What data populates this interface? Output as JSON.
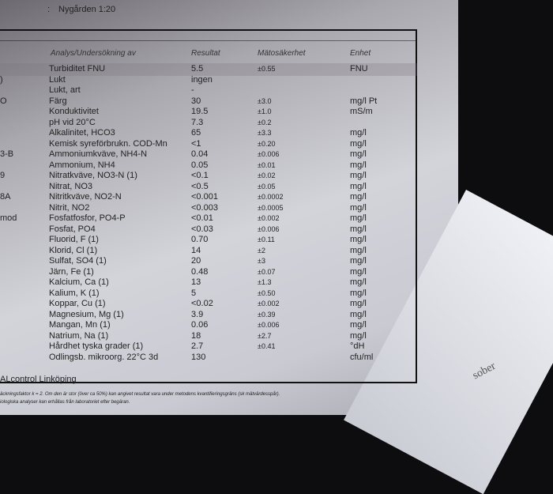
{
  "top": {
    "separator": ":",
    "text": "Nygården 1:20"
  },
  "headers": {
    "analysis": "Analys/Undersökning av",
    "result": "Resultat",
    "uncertainty": "Mätosäkerhet",
    "unit": "Enhet"
  },
  "rows": [
    {
      "code": "",
      "name": "Turbiditet FNU",
      "result": "5.5",
      "unc": "±0.55",
      "unit": "FNU"
    },
    {
      "code": ")",
      "name": "Lukt",
      "result": "ingen",
      "unc": "",
      "unit": ""
    },
    {
      "code": "",
      "name": "Lukt, art",
      "result": "-",
      "unc": "",
      "unit": ""
    },
    {
      "code": "O",
      "name": "Färg",
      "result": "30",
      "unc": "±3.0",
      "unit": "mg/l Pt"
    },
    {
      "code": "",
      "name": "Konduktivitet",
      "result": "19.5",
      "unc": "±1.0",
      "unit": "mS/m"
    },
    {
      "code": "",
      "name": "pH vid 20°C",
      "result": "7.3",
      "unc": "±0.2",
      "unit": ""
    },
    {
      "code": "",
      "name": "Alkalinitet, HCO3",
      "result": "65",
      "unc": "±3.3",
      "unit": "mg/l"
    },
    {
      "code": "",
      "name": "Kemisk syreförbrukn. COD-Mn",
      "result": "<1",
      "unc": "±0.20",
      "unit": "mg/l"
    },
    {
      "code": "3-B",
      "name": "Ammoniumkväve, NH4-N",
      "result": "0.04",
      "unc": "±0.006",
      "unit": "mg/l"
    },
    {
      "code": "",
      "name": "Ammonium, NH4",
      "result": "0.05",
      "unc": "±0.01",
      "unit": "mg/l"
    },
    {
      "code": "9",
      "name": "Nitratkväve, NO3-N (1)",
      "result": "<0.1",
      "unc": "±0.02",
      "unit": "mg/l"
    },
    {
      "code": "",
      "name": "Nitrat, NO3",
      "result": "<0.5",
      "unc": "±0.05",
      "unit": "mg/l"
    },
    {
      "code": "8A",
      "name": "Nitritkväve, NO2-N",
      "result": "<0.001",
      "unc": "±0.0002",
      "unit": "mg/l"
    },
    {
      "code": "",
      "name": "Nitrit, NO2",
      "result": "<0.003",
      "unc": "±0.0005",
      "unit": "mg/l"
    },
    {
      "code": "mod",
      "name": "Fosfatfosfor, PO4-P",
      "result": "<0.01",
      "unc": "±0.002",
      "unit": "mg/l"
    },
    {
      "code": "",
      "name": "Fosfat, PO4",
      "result": "<0.03",
      "unc": "±0.006",
      "unit": "mg/l"
    },
    {
      "code": "",
      "name": "Fluorid, F (1)",
      "result": "0.70",
      "unc": "±0.11",
      "unit": "mg/l"
    },
    {
      "code": "",
      "name": "Klorid, Cl (1)",
      "result": "14",
      "unc": "±2",
      "unit": "mg/l"
    },
    {
      "code": "",
      "name": "Sulfat, SO4 (1)",
      "result": "20",
      "unc": "±3",
      "unit": "mg/l"
    },
    {
      "code": "",
      "name": "Järn, Fe (1)",
      "result": "0.48",
      "unc": "±0.07",
      "unit": "mg/l"
    },
    {
      "code": "",
      "name": "Kalcium, Ca (1)",
      "result": "13",
      "unc": "±1.3",
      "unit": "mg/l"
    },
    {
      "code": "",
      "name": "Kalium, K (1)",
      "result": "5",
      "unc": "±0.50",
      "unit": "mg/l"
    },
    {
      "code": "",
      "name": "Koppar, Cu (1)",
      "result": "<0.02",
      "unc": "±0.002",
      "unit": "mg/l"
    },
    {
      "code": "",
      "name": "Magnesium, Mg (1)",
      "result": "3.9",
      "unc": "±0.39",
      "unit": "mg/l"
    },
    {
      "code": "",
      "name": "Mangan, Mn (1)",
      "result": "0.06",
      "unc": "±0.006",
      "unit": "mg/l"
    },
    {
      "code": "",
      "name": "Natrium, Na (1)",
      "result": "18",
      "unc": "±2.7",
      "unit": "mg/l"
    },
    {
      "code": "",
      "name": "Hårdhet tyska grader (1)",
      "result": "2.7",
      "unc": "±0.41",
      "unit": "°dH"
    },
    {
      "code": "",
      "name": "Odlingsb. mikroorg. 22°C 3d",
      "result": "130",
      "unc": "",
      "unit": "cfu/ml"
    }
  ],
  "lab": "ALcontrol Linköping",
  "footnotes": [
    "äckningsfaktor k = 2. Om den är stor (över ca 50%) kan angivet resultat vara under metodens kvantifieringsgräns (sk mätvärdesspår).",
    "iologiska analyser kan erhållas från laboratoriet efter begäran."
  ],
  "second_paper_logo": "sober"
}
